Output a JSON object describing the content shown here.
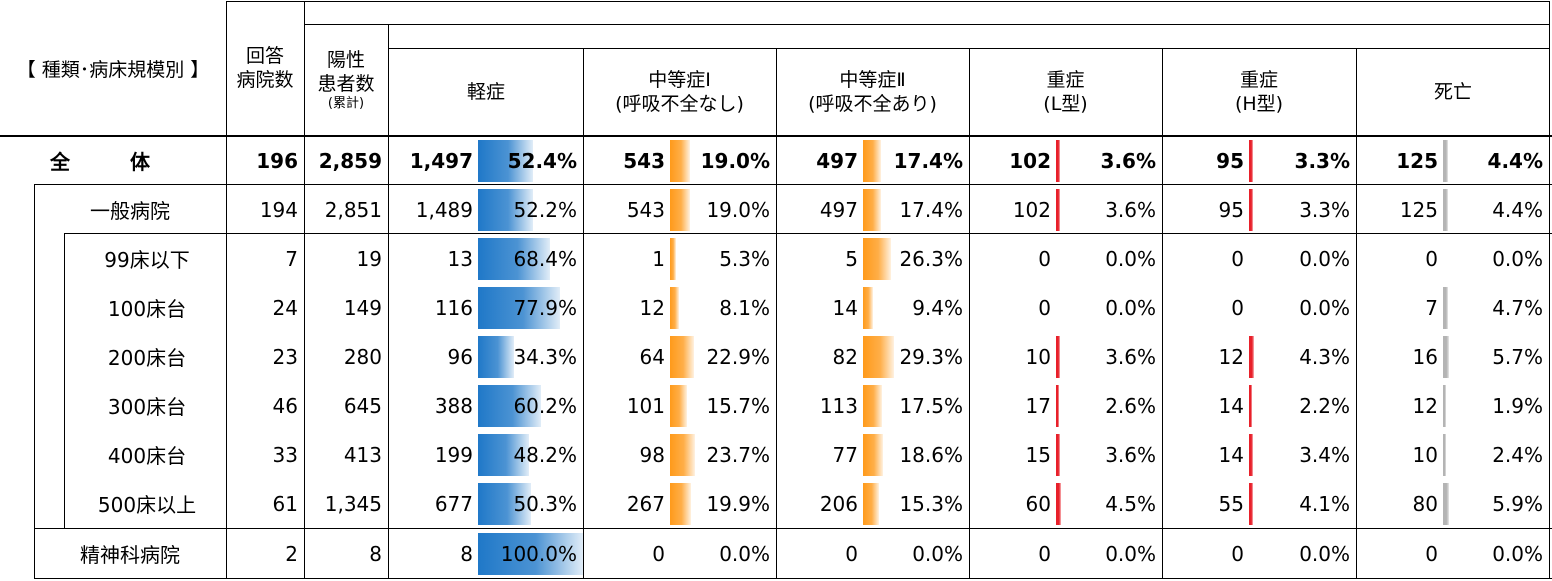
{
  "header": {
    "category": "【 種類･病床規模別 】",
    "hospitals": [
      "回答",
      "病院数"
    ],
    "positives": [
      "陽性",
      "患者数"
    ],
    "positives_note": "(累計)",
    "col_mild": "軽症",
    "col_mod1": [
      "中等症Ⅰ",
      "(呼吸不全なし)"
    ],
    "col_mod2": [
      "中等症Ⅱ",
      "(呼吸不全あり)"
    ],
    "col_sevL": [
      "重症",
      "(L型)"
    ],
    "col_sevH": [
      "重症",
      "(H型)"
    ],
    "col_death": "死亡"
  },
  "colors": {
    "mild": "#1f78c8",
    "moderate": "#ff9a1a",
    "severe": "#e8202a",
    "death": "#b4b4b4"
  },
  "rows": [
    {
      "label": "全　　　体",
      "hospitals": "196",
      "positives": "2,859",
      "mild": "1,497",
      "mild_pct": "52.4%",
      "mild_frac": 0.524,
      "mod1": "543",
      "mod1_pct": "19.0%",
      "mod1_frac": 0.19,
      "mod2": "497",
      "mod2_pct": "17.4%",
      "mod2_frac": 0.174,
      "sevL": "102",
      "sevL_pct": "3.6%",
      "sevL_frac": 0.036,
      "sevH": "95",
      "sevH_pct": "3.3%",
      "sevH_frac": 0.033,
      "death": "125",
      "death_pct": "4.4%",
      "death_frac": 0.044
    },
    {
      "label": "一般病院",
      "hospitals": "194",
      "positives": "2,851",
      "mild": "1,489",
      "mild_pct": "52.2%",
      "mild_frac": 0.522,
      "mod1": "543",
      "mod1_pct": "19.0%",
      "mod1_frac": 0.19,
      "mod2": "497",
      "mod2_pct": "17.4%",
      "mod2_frac": 0.174,
      "sevL": "102",
      "sevL_pct": "3.6%",
      "sevL_frac": 0.036,
      "sevH": "95",
      "sevH_pct": "3.3%",
      "sevH_frac": 0.033,
      "death": "125",
      "death_pct": "4.4%",
      "death_frac": 0.044
    },
    {
      "label": "99床以下",
      "hospitals": "7",
      "positives": "19",
      "mild": "13",
      "mild_pct": "68.4%",
      "mild_frac": 0.684,
      "mod1": "1",
      "mod1_pct": "5.3%",
      "mod1_frac": 0.053,
      "mod2": "5",
      "mod2_pct": "26.3%",
      "mod2_frac": 0.263,
      "sevL": "0",
      "sevL_pct": "0.0%",
      "sevL_frac": 0,
      "sevH": "0",
      "sevH_pct": "0.0%",
      "sevH_frac": 0,
      "death": "0",
      "death_pct": "0.0%",
      "death_frac": 0
    },
    {
      "label": "100床台",
      "hospitals": "24",
      "positives": "149",
      "mild": "116",
      "mild_pct": "77.9%",
      "mild_frac": 0.779,
      "mod1": "12",
      "mod1_pct": "8.1%",
      "mod1_frac": 0.081,
      "mod2": "14",
      "mod2_pct": "9.4%",
      "mod2_frac": 0.094,
      "sevL": "0",
      "sevL_pct": "0.0%",
      "sevL_frac": 0,
      "sevH": "0",
      "sevH_pct": "0.0%",
      "sevH_frac": 0,
      "death": "7",
      "death_pct": "4.7%",
      "death_frac": 0.047
    },
    {
      "label": "200床台",
      "hospitals": "23",
      "positives": "280",
      "mild": "96",
      "mild_pct": "34.3%",
      "mild_frac": 0.343,
      "mod1": "64",
      "mod1_pct": "22.9%",
      "mod1_frac": 0.229,
      "mod2": "82",
      "mod2_pct": "29.3%",
      "mod2_frac": 0.293,
      "sevL": "10",
      "sevL_pct": "3.6%",
      "sevL_frac": 0.036,
      "sevH": "12",
      "sevH_pct": "4.3%",
      "sevH_frac": 0.043,
      "death": "16",
      "death_pct": "5.7%",
      "death_frac": 0.057
    },
    {
      "label": "300床台",
      "hospitals": "46",
      "positives": "645",
      "mild": "388",
      "mild_pct": "60.2%",
      "mild_frac": 0.602,
      "mod1": "101",
      "mod1_pct": "15.7%",
      "mod1_frac": 0.157,
      "mod2": "113",
      "mod2_pct": "17.5%",
      "mod2_frac": 0.175,
      "sevL": "17",
      "sevL_pct": "2.6%",
      "sevL_frac": 0.026,
      "sevH": "14",
      "sevH_pct": "2.2%",
      "sevH_frac": 0.022,
      "death": "12",
      "death_pct": "1.9%",
      "death_frac": 0.019
    },
    {
      "label": "400床台",
      "hospitals": "33",
      "positives": "413",
      "mild": "199",
      "mild_pct": "48.2%",
      "mild_frac": 0.482,
      "mod1": "98",
      "mod1_pct": "23.7%",
      "mod1_frac": 0.237,
      "mod2": "77",
      "mod2_pct": "18.6%",
      "mod2_frac": 0.186,
      "sevL": "15",
      "sevL_pct": "3.6%",
      "sevL_frac": 0.036,
      "sevH": "14",
      "sevH_pct": "3.4%",
      "sevH_frac": 0.034,
      "death": "10",
      "death_pct": "2.4%",
      "death_frac": 0.024
    },
    {
      "label": "500床以上",
      "hospitals": "61",
      "positives": "1,345",
      "mild": "677",
      "mild_pct": "50.3%",
      "mild_frac": 0.503,
      "mod1": "267",
      "mod1_pct": "19.9%",
      "mod1_frac": 0.199,
      "mod2": "206",
      "mod2_pct": "15.3%",
      "mod2_frac": 0.153,
      "sevL": "60",
      "sevL_pct": "4.5%",
      "sevL_frac": 0.045,
      "sevH": "55",
      "sevH_pct": "4.1%",
      "sevH_frac": 0.041,
      "death": "80",
      "death_pct": "5.9%",
      "death_frac": 0.059
    },
    {
      "label": "精神科病院",
      "hospitals": "2",
      "positives": "8",
      "mild": "8",
      "mild_pct": "100.0%",
      "mild_frac": 1.0,
      "mod1": "0",
      "mod1_pct": "0.0%",
      "mod1_frac": 0,
      "mod2": "0",
      "mod2_pct": "0.0%",
      "mod2_frac": 0,
      "sevL": "0",
      "sevL_pct": "0.0%",
      "sevL_frac": 0,
      "sevH": "0",
      "sevH_pct": "0.0%",
      "sevH_frac": 0,
      "death": "0",
      "death_pct": "0.0%",
      "death_frac": 0
    }
  ]
}
